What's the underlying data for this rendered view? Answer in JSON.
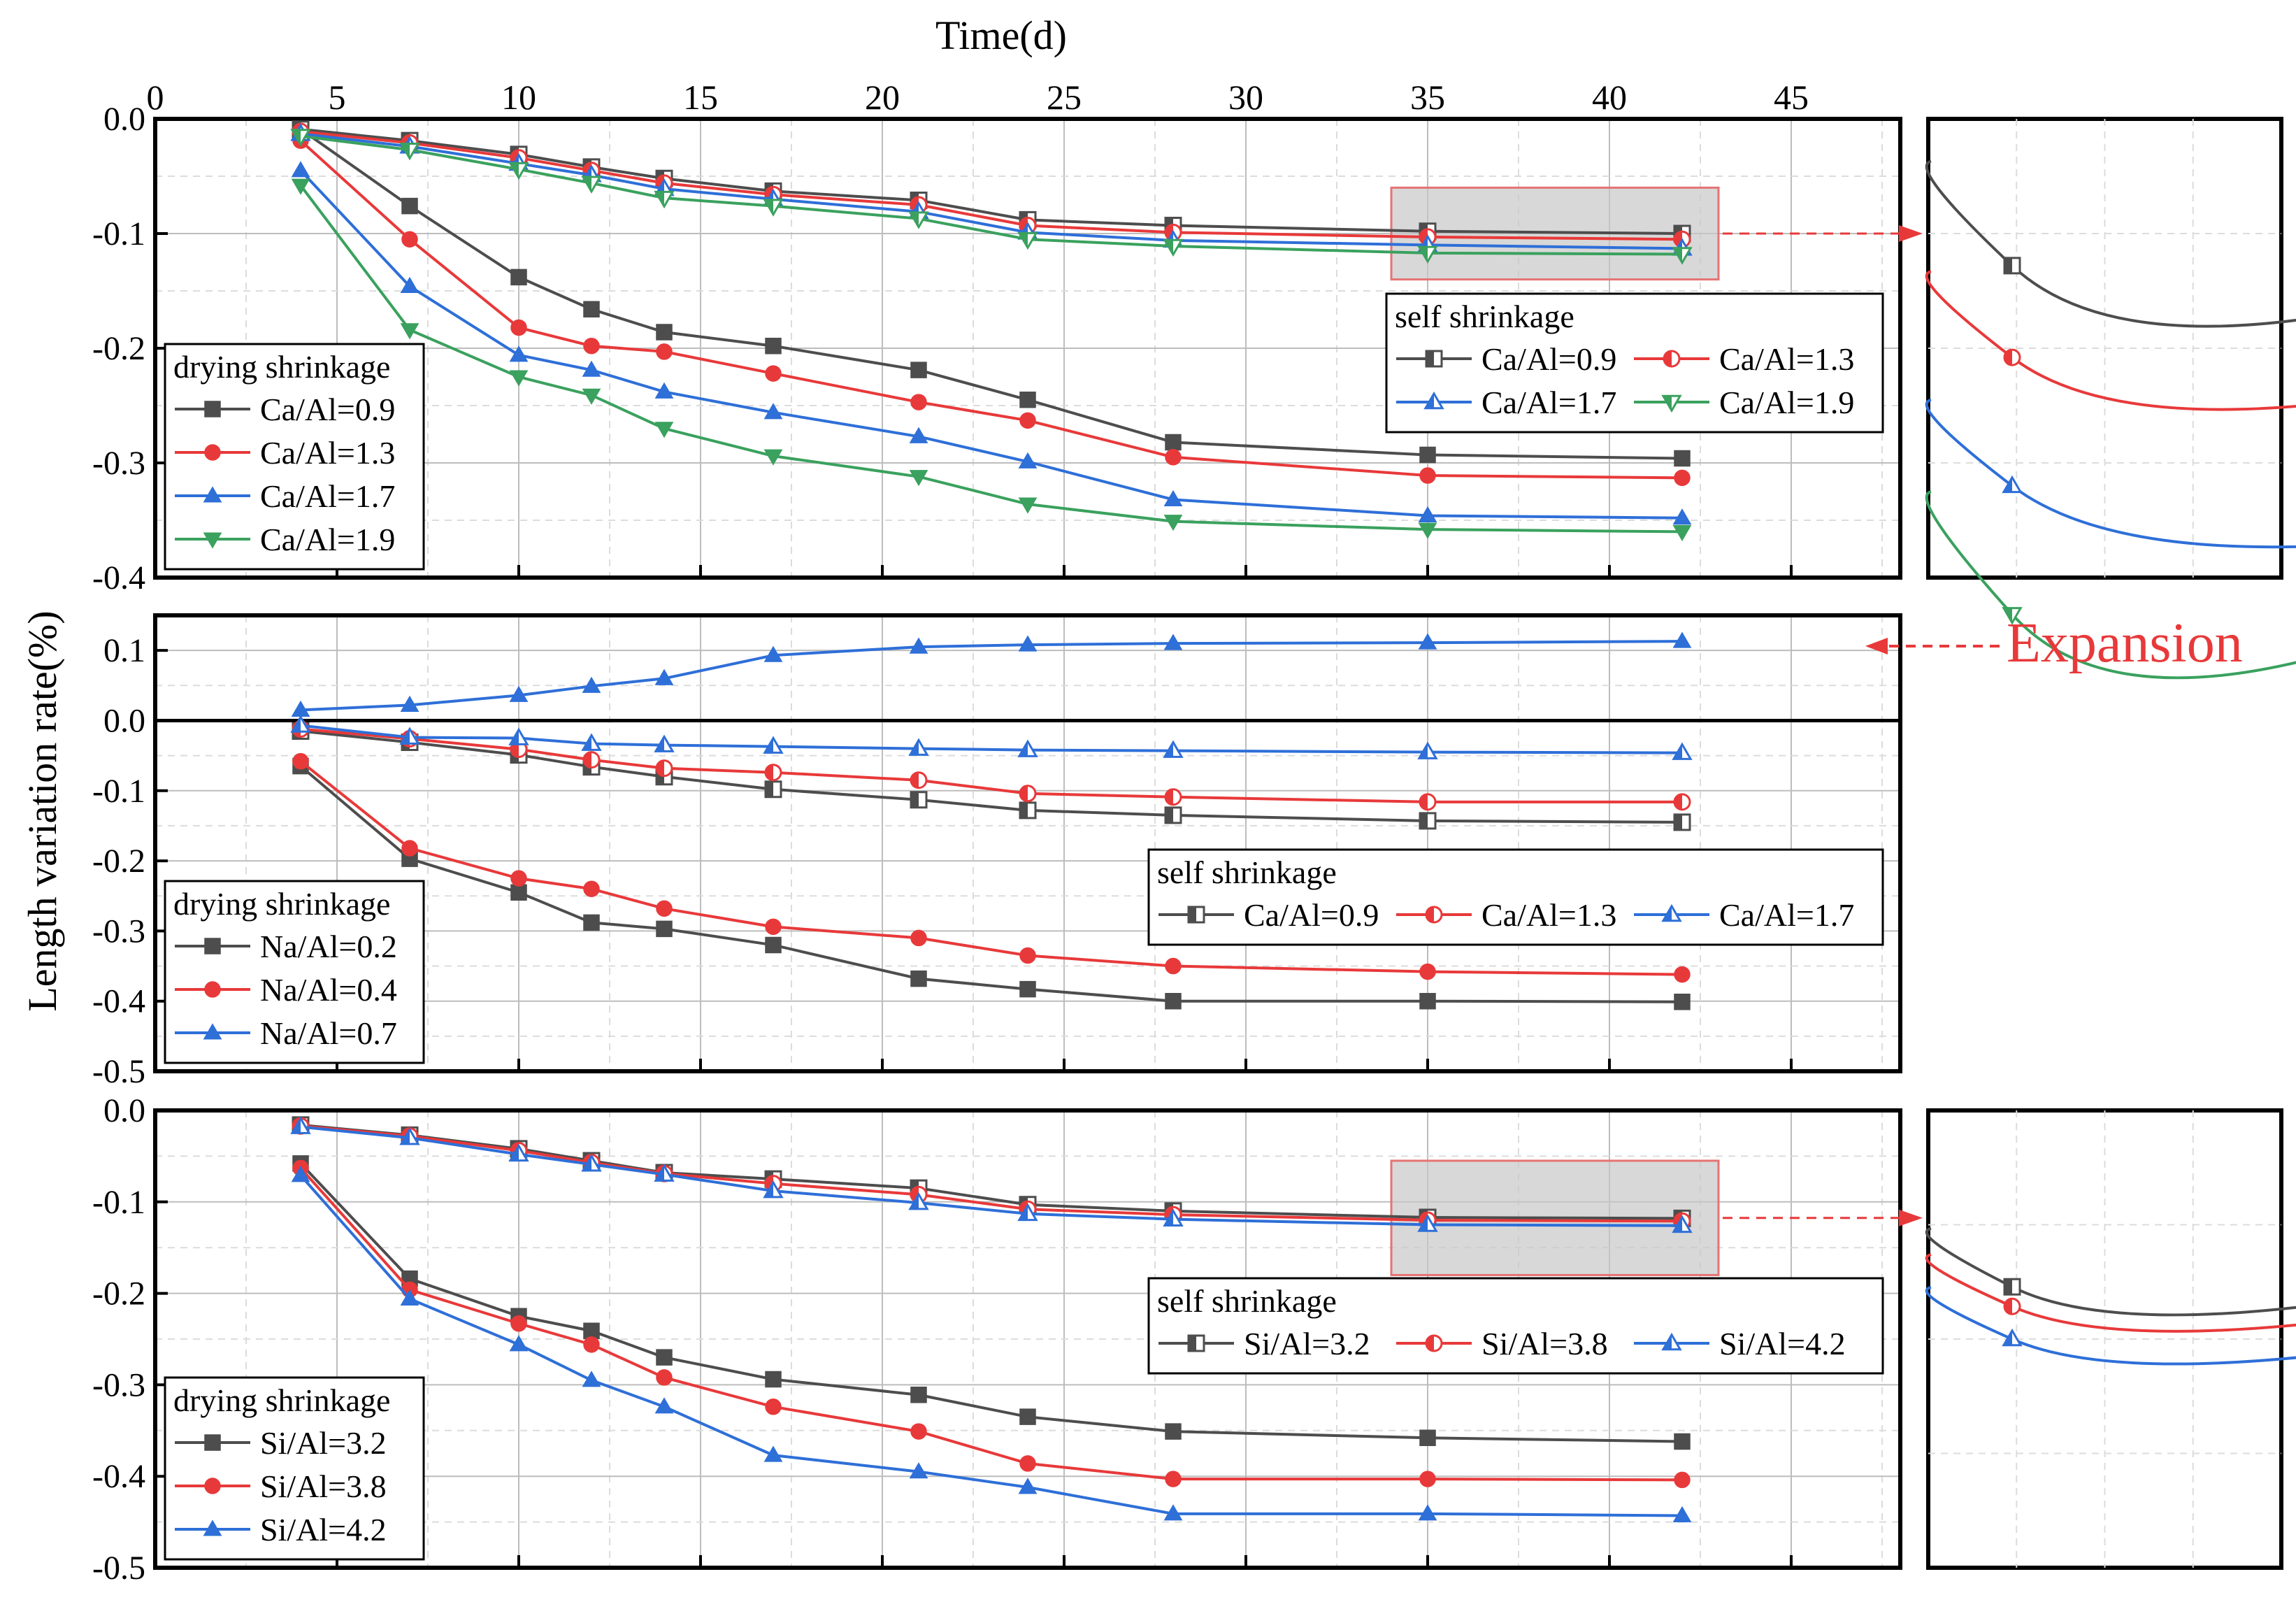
{
  "figure": {
    "x_title": "Time(d)",
    "y_title": "Length variation rate(%)",
    "expansion_label": "Expansion",
    "x_ticks": [
      0,
      5,
      10,
      15,
      20,
      25,
      30,
      35,
      40,
      45
    ]
  },
  "chart_data": [
    {
      "type": "line",
      "panel": "Ca/Al",
      "xlabel": "Time(d)",
      "ylabel": "Length variation rate(%)",
      "xlim": [
        0,
        48
      ],
      "ylim": [
        -0.4,
        0.0
      ],
      "yticks": [
        0.0,
        -0.1,
        -0.2,
        -0.3,
        -0.4
      ],
      "y_tick_labels": [
        "0.0",
        "-0.1",
        "-0.2",
        "-0.3",
        "-0.4"
      ],
      "grid": true,
      "x": [
        4,
        7,
        10,
        12,
        14,
        17,
        21,
        24,
        28,
        35,
        42
      ],
      "groups": [
        {
          "title": "drying shrinkage",
          "legend_position": "left",
          "series": [
            {
              "name": "Ca/Al=0.9",
              "color": "#4d4d4d",
              "marker": "square",
              "values": [
                -0.009,
                -0.076,
                -0.138,
                -0.166,
                -0.186,
                -0.198,
                -0.219,
                -0.245,
                -0.282,
                -0.293,
                -0.296
              ]
            },
            {
              "name": "Ca/Al=1.3",
              "color": "#e8393a",
              "marker": "circle",
              "values": [
                -0.019,
                -0.105,
                -0.182,
                -0.198,
                -0.203,
                -0.222,
                -0.247,
                -0.263,
                -0.295,
                -0.311,
                -0.313
              ]
            },
            {
              "name": "Ca/Al=1.7",
              "color": "#2e6fd8",
              "marker": "triangle-up",
              "values": [
                -0.045,
                -0.146,
                -0.206,
                -0.219,
                -0.238,
                -0.256,
                -0.277,
                -0.299,
                -0.332,
                -0.346,
                -0.348
              ]
            },
            {
              "name": "Ca/Al=1.9",
              "color": "#3aa15e",
              "marker": "triangle-down",
              "values": [
                -0.058,
                -0.184,
                -0.225,
                -0.241,
                -0.27,
                -0.294,
                -0.312,
                -0.336,
                -0.351,
                -0.358,
                -0.36
              ]
            }
          ]
        },
        {
          "title": "self shrinkage",
          "legend_position": "right",
          "series": [
            {
              "name": "Ca/Al=0.9",
              "color": "#4d4d4d",
              "marker": "half-square",
              "values": [
                -0.009,
                -0.019,
                -0.031,
                -0.042,
                -0.052,
                -0.063,
                -0.071,
                -0.088,
                -0.093,
                -0.098,
                -0.1
              ]
            },
            {
              "name": "Ca/Al=1.3",
              "color": "#e8393a",
              "marker": "half-circle",
              "values": [
                -0.011,
                -0.021,
                -0.034,
                -0.045,
                -0.056,
                -0.066,
                -0.075,
                -0.093,
                -0.099,
                -0.103,
                -0.105
              ]
            },
            {
              "name": "Ca/Al=1.7",
              "color": "#2e6fd8",
              "marker": "half-triangle-up",
              "values": [
                -0.013,
                -0.024,
                -0.039,
                -0.049,
                -0.061,
                -0.07,
                -0.081,
                -0.099,
                -0.106,
                -0.11,
                -0.113
              ]
            },
            {
              "name": "Ca/Al=1.9",
              "color": "#3aa15e",
              "marker": "half-triangle-down",
              "values": [
                -0.015,
                -0.027,
                -0.044,
                -0.056,
                -0.069,
                -0.076,
                -0.087,
                -0.105,
                -0.111,
                -0.117,
                -0.118
              ]
            }
          ]
        }
      ],
      "zoom_box": {
        "x_range": [
          34,
          43
        ],
        "y_range": [
          -0.14,
          -0.06
        ]
      }
    },
    {
      "type": "line",
      "panel": "Na/Al",
      "xlabel": "Time(d)",
      "ylabel": "Length variation rate(%)",
      "xlim": [
        0,
        48
      ],
      "ylim": [
        -0.5,
        0.15
      ],
      "yticks": [
        0.1,
        0.0,
        -0.1,
        -0.2,
        -0.3,
        -0.4,
        -0.5
      ],
      "y_tick_labels": [
        "0.1",
        "0.0",
        "-0.1",
        "-0.2",
        "-0.3",
        "-0.4",
        "-0.5"
      ],
      "grid": true,
      "x": [
        4,
        7,
        10,
        12,
        14,
        17,
        21,
        24,
        28,
        35,
        42
      ],
      "groups": [
        {
          "title": "drying shrinkage",
          "legend_position": "left",
          "series": [
            {
              "name": "Na/Al=0.2",
              "color": "#4d4d4d",
              "marker": "square",
              "values": [
                -0.065,
                -0.197,
                -0.245,
                -0.288,
                -0.297,
                -0.32,
                -0.368,
                -0.383,
                -0.4,
                -0.4,
                -0.401
              ]
            },
            {
              "name": "Na/Al=0.4",
              "color": "#e8393a",
              "marker": "circle",
              "values": [
                -0.058,
                -0.182,
                -0.225,
                -0.24,
                -0.268,
                -0.294,
                -0.31,
                -0.335,
                -0.35,
                -0.358,
                -0.362
              ]
            },
            {
              "name": "Na/Al=0.7",
              "color": "#2e6fd8",
              "marker": "triangle-up",
              "values": [
                0.015,
                0.022,
                0.036,
                0.049,
                0.06,
                0.093,
                0.105,
                0.108,
                0.11,
                0.111,
                0.113
              ]
            }
          ]
        },
        {
          "title": "self shrinkage",
          "legend_position": "right",
          "series": [
            {
              "name": "Ca/Al=0.9",
              "color": "#4d4d4d",
              "marker": "half-square",
              "values": [
                -0.015,
                -0.031,
                -0.049,
                -0.066,
                -0.08,
                -0.098,
                -0.113,
                -0.128,
                -0.135,
                -0.143,
                -0.145
              ]
            },
            {
              "name": "Ca/Al=1.3",
              "color": "#e8393a",
              "marker": "half-circle",
              "values": [
                -0.012,
                -0.026,
                -0.041,
                -0.056,
                -0.068,
                -0.074,
                -0.085,
                -0.104,
                -0.109,
                -0.116,
                -0.116
              ]
            },
            {
              "name": "Ca/Al=1.7",
              "color": "#2e6fd8",
              "marker": "half-triangle-up",
              "values": [
                -0.007,
                -0.024,
                -0.025,
                -0.033,
                -0.035,
                -0.037,
                -0.04,
                -0.042,
                -0.043,
                -0.045,
                -0.046
              ]
            }
          ]
        }
      ]
    },
    {
      "type": "line",
      "panel": "Si/Al",
      "xlabel": "Time(d)",
      "ylabel": "Length variation rate(%)",
      "xlim": [
        0,
        48
      ],
      "ylim": [
        -0.5,
        0.0
      ],
      "yticks": [
        0.0,
        -0.1,
        -0.2,
        -0.3,
        -0.4,
        -0.5
      ],
      "y_tick_labels": [
        "0.0",
        "-0.1",
        "-0.2",
        "-0.3",
        "-0.4",
        "-0.5"
      ],
      "grid": true,
      "x": [
        4,
        7,
        10,
        12,
        14,
        17,
        21,
        24,
        28,
        35,
        42
      ],
      "groups": [
        {
          "title": "drying shrinkage",
          "legend_position": "left",
          "series": [
            {
              "name": "Si/Al=3.2",
              "color": "#4d4d4d",
              "marker": "square",
              "values": [
                -0.058,
                -0.184,
                -0.225,
                -0.241,
                -0.27,
                -0.294,
                -0.311,
                -0.335,
                -0.351,
                -0.358,
                -0.362
              ]
            },
            {
              "name": "Si/Al=3.8",
              "color": "#e8393a",
              "marker": "circle",
              "values": [
                -0.063,
                -0.196,
                -0.233,
                -0.256,
                -0.292,
                -0.324,
                -0.351,
                -0.386,
                -0.403,
                -0.403,
                -0.404
              ]
            },
            {
              "name": "Si/Al=4.2",
              "color": "#2e6fd8",
              "marker": "triangle-up",
              "values": [
                -0.071,
                -0.206,
                -0.256,
                -0.295,
                -0.324,
                -0.377,
                -0.395,
                -0.412,
                -0.441,
                -0.441,
                -0.443
              ]
            }
          ]
        },
        {
          "title": "self shrinkage",
          "legend_position": "right",
          "series": [
            {
              "name": "Si/Al=3.2",
              "color": "#4d4d4d",
              "marker": "half-square",
              "values": [
                -0.016,
                -0.027,
                -0.042,
                -0.055,
                -0.068,
                -0.075,
                -0.085,
                -0.103,
                -0.11,
                -0.117,
                -0.118
              ]
            },
            {
              "name": "Si/Al=3.8",
              "color": "#e8393a",
              "marker": "half-circle",
              "values": [
                -0.017,
                -0.028,
                -0.044,
                -0.057,
                -0.069,
                -0.08,
                -0.092,
                -0.108,
                -0.114,
                -0.12,
                -0.121
              ]
            },
            {
              "name": "Si/Al=4.2",
              "color": "#2e6fd8",
              "marker": "half-triangle-up",
              "values": [
                -0.018,
                -0.03,
                -0.048,
                -0.059,
                -0.07,
                -0.088,
                -0.101,
                -0.113,
                -0.119,
                -0.125,
                -0.126
              ]
            }
          ]
        }
      ],
      "zoom_box": {
        "x_range": [
          34,
          43
        ],
        "y_range": [
          -0.18,
          -0.055
        ]
      }
    }
  ]
}
